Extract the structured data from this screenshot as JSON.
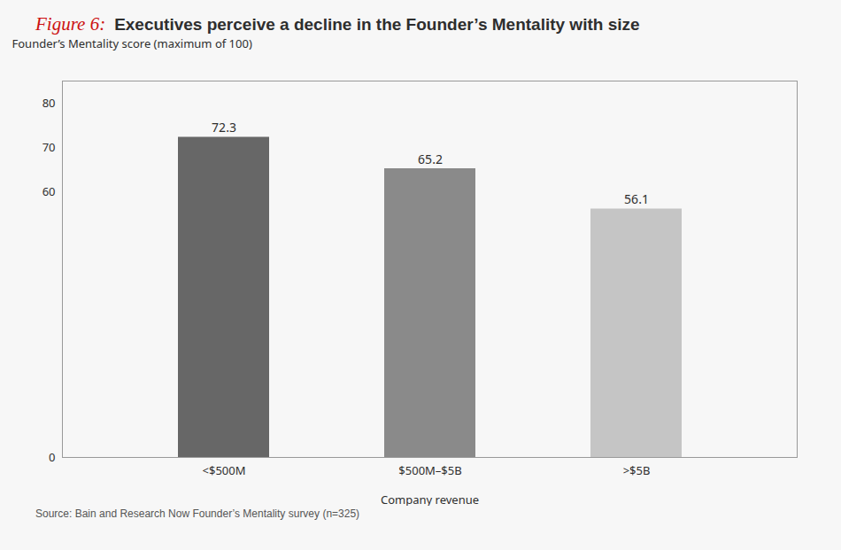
{
  "chart_data": {
    "type": "bar",
    "title": "Executives perceive a decline in the Founder’s Mentality with size",
    "annotations": [
      {
        "text": "Figure 6:",
        "color": "#cc1111"
      }
    ],
    "caption": "Source: Bain and Research Now Founder’s Mentality survey (n=325)",
    "xlabel": "Company revenue",
    "ylabel": "Founder’s Mentality score (maximum of 100)",
    "categories": [
      "<$500M",
      "$500M–$5B",
      ">$5B"
    ],
    "values": [
      72.3,
      65.2,
      56.1
    ],
    "colors": [
      "#676767",
      "#8a8a8a",
      "#c5c5c5"
    ],
    "ylim": [
      0,
      85
    ],
    "yticks": [
      0,
      60,
      70,
      80
    ],
    "grid": false,
    "data_labels": true
  }
}
